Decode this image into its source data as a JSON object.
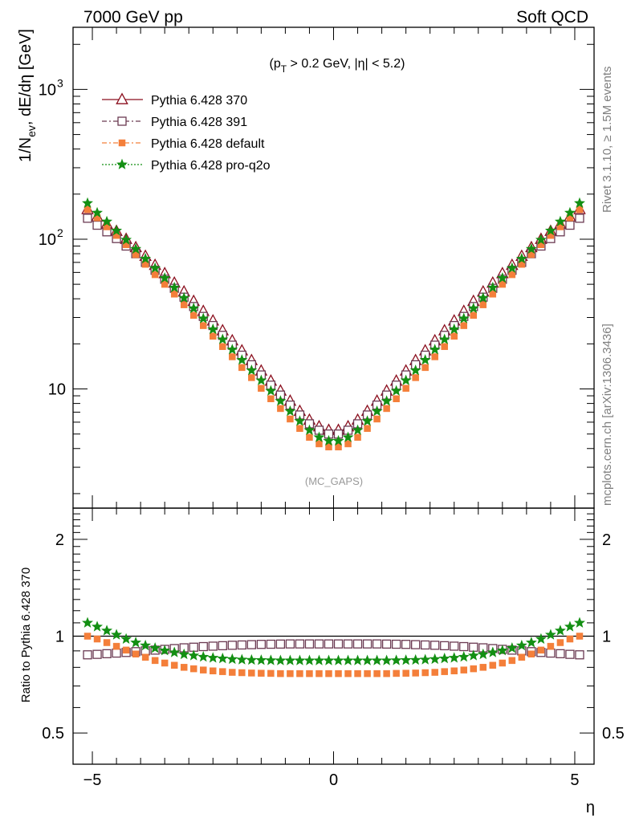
{
  "header": {
    "left": "7000 GeV pp",
    "right": "Soft QCD",
    "cut": "(p_T > 0.2 GeV, |η| < 5.2)"
  },
  "side_text": {
    "top": "Rivet 3.1.10, ≥ 1.5M events",
    "bottom": "mcplots.cern.ch [arXiv:1306.3436]"
  },
  "watermark": "(MC_GAPS)",
  "colors": {
    "p370": "#8b0f1e",
    "p391": "#6b3a52",
    "default": "#f47f3a",
    "proq2o": "#138f13"
  },
  "chart_data": [
    {
      "type": "line",
      "title": "",
      "xlabel": "η",
      "ylabel": "1/N_ev, dE/dη [GeV]",
      "yscale": "log",
      "xlim": [
        -5.4,
        5.4
      ],
      "ylim": [
        1.6,
        2600
      ],
      "xticks": [
        "−5",
        "0",
        "5"
      ],
      "yticks": [
        "10",
        "10^2",
        "10^3"
      ],
      "legend_position": "top-left",
      "x": [
        -5.1,
        -4.9,
        -4.7,
        -4.5,
        -4.3,
        -4.1,
        -3.9,
        -3.7,
        -3.5,
        -3.3,
        -3.1,
        -2.9,
        -2.7,
        -2.5,
        -2.3,
        -2.1,
        -1.9,
        -1.7,
        -1.5,
        -1.3,
        -1.1,
        -0.9,
        -0.7,
        -0.5,
        -0.3,
        -0.1,
        0.1,
        0.3,
        0.5,
        0.7,
        0.9,
        1.1,
        1.3,
        1.5,
        1.7,
        1.9,
        2.1,
        2.3,
        2.5,
        2.7,
        2.9,
        3.1,
        3.3,
        3.5,
        3.7,
        3.9,
        4.1,
        4.3,
        4.5,
        4.7,
        4.9,
        5.1
      ],
      "series": [
        {
          "name": "Pythia 6.428 370",
          "values": [
            158,
            141,
            126,
            113,
            100,
            88,
            77,
            67,
            59,
            51,
            44.5,
            38.5,
            33,
            28.5,
            24.5,
            21,
            18,
            15.5,
            13.2,
            11.3,
            9.7,
            8.3,
            7.1,
            6.2,
            5.6,
            5.3,
            5.3,
            5.6,
            6.2,
            7.1,
            8.3,
            9.7,
            11.3,
            13.2,
            15.5,
            18,
            21,
            24.5,
            28.5,
            33,
            38.5,
            44.5,
            51,
            59,
            67,
            77,
            88,
            100,
            113,
            126,
            141,
            158
          ]
        },
        {
          "name": "Pythia 6.428 391",
          "values": [
            138,
            124,
            112,
            101,
            90,
            80,
            70,
            62,
            54,
            47,
            41,
            35.5,
            30.5,
            26.5,
            22.8,
            19.6,
            16.8,
            14.5,
            12.4,
            10.6,
            9.1,
            7.8,
            6.7,
            5.85,
            5.3,
            5.0,
            5.0,
            5.3,
            5.85,
            6.7,
            7.8,
            9.1,
            10.6,
            12.4,
            14.5,
            16.8,
            19.6,
            22.8,
            26.5,
            30.5,
            35.5,
            41,
            47,
            54,
            62,
            70,
            80,
            90,
            101,
            112,
            124,
            138
          ]
        },
        {
          "name": "Pythia 6.428 default",
          "values": [
            158,
            139,
            121,
            106,
            92,
            79,
            68,
            58,
            50,
            43,
            36.5,
            31,
            26.5,
            22.5,
            19.2,
            16.4,
            13.9,
            11.9,
            10.1,
            8.6,
            7.4,
            6.3,
            5.45,
            4.75,
            4.3,
            4.1,
            4.1,
            4.3,
            4.75,
            5.45,
            6.3,
            7.4,
            8.6,
            10.1,
            11.9,
            13.9,
            16.4,
            19.2,
            22.5,
            26.5,
            31,
            36.5,
            43,
            50,
            58,
            68,
            79,
            92,
            106,
            121,
            139,
            158
          ]
        },
        {
          "name": "Pythia 6.428 pro-q2o",
          "values": [
            174,
            150,
            131,
            114,
            99,
            86,
            74,
            64,
            55,
            47.5,
            40.5,
            34.5,
            29.5,
            25,
            21.4,
            18.3,
            15.6,
            13.3,
            11.4,
            9.7,
            8.3,
            7.1,
            6.1,
            5.3,
            4.75,
            4.5,
            4.5,
            4.75,
            5.3,
            6.1,
            7.1,
            8.3,
            9.7,
            11.4,
            13.3,
            15.6,
            18.3,
            21.4,
            25,
            29.5,
            34.5,
            40.5,
            47.5,
            55,
            64,
            74,
            86,
            99,
            114,
            131,
            150,
            174
          ]
        }
      ]
    },
    {
      "type": "line",
      "title": "",
      "xlabel": "η",
      "ylabel": "Ratio to Pythia 6.428 370",
      "yscale": "log",
      "xlim": [
        -5.4,
        5.4
      ],
      "ylim": [
        0.4,
        2.5
      ],
      "yticks": [
        "0.5",
        "1",
        "2"
      ],
      "reference_line": 1,
      "x": [
        -5.1,
        -4.9,
        -4.7,
        -4.5,
        -4.3,
        -4.1,
        -3.9,
        -3.7,
        -3.5,
        -3.3,
        -3.1,
        -2.9,
        -2.7,
        -2.5,
        -2.3,
        -2.1,
        -1.9,
        -1.7,
        -1.5,
        -1.3,
        -1.1,
        -0.9,
        -0.7,
        -0.5,
        -0.3,
        -0.1,
        0.1,
        0.3,
        0.5,
        0.7,
        0.9,
        1.1,
        1.3,
        1.5,
        1.7,
        1.9,
        2.1,
        2.3,
        2.5,
        2.7,
        2.9,
        3.1,
        3.3,
        3.5,
        3.7,
        3.9,
        4.1,
        4.3,
        4.5,
        4.7,
        4.9,
        5.1
      ],
      "series": [
        {
          "name": "Pythia 6.428 391",
          "values": [
            0.875,
            0.878,
            0.882,
            0.886,
            0.89,
            0.895,
            0.9,
            0.905,
            0.91,
            0.915,
            0.92,
            0.924,
            0.928,
            0.931,
            0.934,
            0.937,
            0.939,
            0.941,
            0.943,
            0.944,
            0.945,
            0.946,
            0.946,
            0.946,
            0.946,
            0.946,
            0.946,
            0.946,
            0.946,
            0.946,
            0.946,
            0.945,
            0.944,
            0.943,
            0.941,
            0.939,
            0.937,
            0.934,
            0.931,
            0.928,
            0.924,
            0.92,
            0.915,
            0.91,
            0.905,
            0.9,
            0.895,
            0.89,
            0.886,
            0.882,
            0.878,
            0.875
          ]
        },
        {
          "name": "Pythia 6.428 default",
          "values": [
            1.0,
            0.98,
            0.955,
            0.93,
            0.905,
            0.88,
            0.86,
            0.84,
            0.825,
            0.812,
            0.8,
            0.792,
            0.785,
            0.78,
            0.776,
            0.772,
            0.77,
            0.768,
            0.767,
            0.766,
            0.765,
            0.765,
            0.765,
            0.765,
            0.765,
            0.765,
            0.765,
            0.765,
            0.765,
            0.765,
            0.765,
            0.765,
            0.766,
            0.767,
            0.768,
            0.77,
            0.772,
            0.776,
            0.78,
            0.785,
            0.792,
            0.8,
            0.812,
            0.825,
            0.84,
            0.86,
            0.88,
            0.905,
            0.93,
            0.955,
            0.98,
            1.0
          ]
        },
        {
          "name": "Pythia 6.428 pro-q2o",
          "values": [
            1.1,
            1.07,
            1.04,
            1.01,
            0.98,
            0.955,
            0.935,
            0.918,
            0.902,
            0.89,
            0.878,
            0.87,
            0.862,
            0.856,
            0.852,
            0.848,
            0.845,
            0.843,
            0.842,
            0.841,
            0.84,
            0.84,
            0.84,
            0.84,
            0.84,
            0.84,
            0.84,
            0.84,
            0.84,
            0.84,
            0.84,
            0.84,
            0.841,
            0.842,
            0.843,
            0.845,
            0.848,
            0.852,
            0.856,
            0.862,
            0.87,
            0.878,
            0.89,
            0.902,
            0.918,
            0.935,
            0.955,
            0.98,
            1.01,
            1.04,
            1.07,
            1.1
          ]
        }
      ]
    }
  ]
}
